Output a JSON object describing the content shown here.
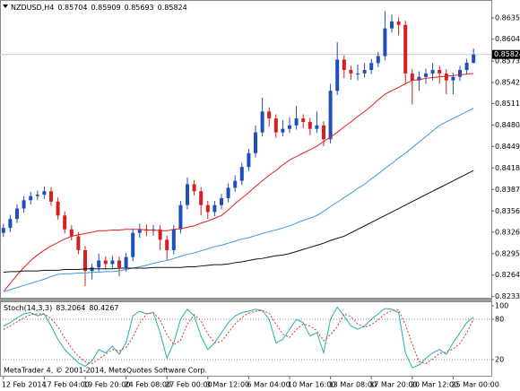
{
  "chart_data": [
    {
      "type": "candlestick",
      "title": "NZDUSD,H4",
      "categories": [
        "12 Feb 2014",
        null,
        null,
        null,
        null,
        null,
        "17 Feb 04:00",
        null,
        null,
        null,
        null,
        null,
        "19 Feb 20:00",
        null,
        null,
        null,
        null,
        null,
        "24 Feb 08:00",
        null,
        null,
        null,
        null,
        null,
        "27 Feb 00:00",
        null,
        null,
        null,
        null,
        null,
        "3 Mar 12:00",
        null,
        null,
        null,
        null,
        null,
        "6 Mar 04:00",
        null,
        null,
        null,
        null,
        null,
        "10 Mar 16:00",
        null,
        null,
        null,
        null,
        null,
        "13 Mar 08:00",
        null,
        null,
        null,
        null,
        null,
        "17 Mar 20:00",
        null,
        null,
        null,
        null,
        null,
        "20 Mar 12:00",
        null,
        null,
        null,
        null,
        null,
        "25 Mar 00:00",
        null,
        null,
        null
      ],
      "open": [
        0.8325,
        0.8332,
        0.8345,
        0.836,
        0.8372,
        0.8378,
        0.838,
        0.8385,
        0.837,
        0.835,
        0.833,
        0.832,
        0.83,
        0.827,
        0.8275,
        0.8285,
        0.828,
        0.8285,
        0.8275,
        0.829,
        0.8325,
        0.833,
        0.8328,
        0.833,
        0.8315,
        0.83,
        0.833,
        0.8365,
        0.8395,
        0.8385,
        0.8365,
        0.8355,
        0.8365,
        0.8375,
        0.839,
        0.84,
        0.842,
        0.844,
        0.847,
        0.85,
        0.849,
        0.847,
        0.8475,
        0.848,
        0.849,
        0.8485,
        0.8475,
        0.848,
        0.846,
        0.853,
        0.8575,
        0.856,
        0.8555,
        0.8555,
        0.856,
        0.857,
        0.858,
        0.862,
        0.863,
        0.8625,
        0.8555,
        0.8545,
        0.855,
        0.8555,
        0.856,
        0.8555,
        0.8545,
        0.855,
        0.856,
        0.85704
      ],
      "high": [
        0.8338,
        0.8351,
        0.8366,
        0.8378,
        0.8384,
        0.8386,
        0.8392,
        0.8391,
        0.8376,
        0.8356,
        0.8336,
        0.8326,
        0.8306,
        0.8281,
        0.8295,
        0.8291,
        0.8292,
        0.8291,
        0.8296,
        0.8331,
        0.8338,
        0.8337,
        0.8336,
        0.8336,
        0.8321,
        0.8336,
        0.8371,
        0.8405,
        0.8401,
        0.8391,
        0.8371,
        0.8371,
        0.8381,
        0.8396,
        0.8408,
        0.8426,
        0.8446,
        0.848,
        0.852,
        0.8506,
        0.8496,
        0.8488,
        0.8492,
        0.8508,
        0.8496,
        0.8491,
        0.85,
        0.8486,
        0.854,
        0.86,
        0.8581,
        0.8566,
        0.8568,
        0.857,
        0.8576,
        0.8586,
        0.8645,
        0.864,
        0.8636,
        0.8631,
        0.8561,
        0.8558,
        0.8562,
        0.857,
        0.8566,
        0.8561,
        0.8556,
        0.8566,
        0.8576,
        0.85909
      ],
      "low": [
        0.8319,
        0.8326,
        0.8339,
        0.8354,
        0.8366,
        0.8372,
        0.8374,
        0.8364,
        0.8344,
        0.8324,
        0.8314,
        0.8294,
        0.8248,
        0.8258,
        0.8269,
        0.8272,
        0.8274,
        0.8262,
        0.8269,
        0.8284,
        0.8318,
        0.832,
        0.8321,
        0.83,
        0.8286,
        0.8294,
        0.8324,
        0.8359,
        0.8379,
        0.835,
        0.8345,
        0.8349,
        0.8359,
        0.8369,
        0.8384,
        0.8394,
        0.8414,
        0.8434,
        0.8464,
        0.8478,
        0.8462,
        0.8464,
        0.8469,
        0.8474,
        0.8476,
        0.8466,
        0.8469,
        0.845,
        0.8454,
        0.8524,
        0.8548,
        0.8546,
        0.8545,
        0.8549,
        0.8554,
        0.8564,
        0.8574,
        0.8614,
        0.861,
        0.854,
        0.851,
        0.853,
        0.854,
        0.8545,
        0.854,
        0.8525,
        0.8525,
        0.8544,
        0.8554,
        0.85693
      ],
      "close": [
        0.8332,
        0.8345,
        0.836,
        0.8372,
        0.8378,
        0.838,
        0.8385,
        0.837,
        0.835,
        0.833,
        0.832,
        0.83,
        0.827,
        0.8275,
        0.8285,
        0.828,
        0.8285,
        0.8275,
        0.829,
        0.8325,
        0.833,
        0.8328,
        0.833,
        0.8315,
        0.83,
        0.833,
        0.8365,
        0.8395,
        0.8385,
        0.8365,
        0.8355,
        0.8365,
        0.8375,
        0.839,
        0.84,
        0.842,
        0.844,
        0.847,
        0.85,
        0.849,
        0.847,
        0.8475,
        0.848,
        0.849,
        0.8485,
        0.8475,
        0.848,
        0.846,
        0.853,
        0.8575,
        0.856,
        0.8555,
        0.8555,
        0.856,
        0.857,
        0.858,
        0.862,
        0.863,
        0.8625,
        0.8555,
        0.8545,
        0.855,
        0.8555,
        0.856,
        0.8555,
        0.8545,
        0.855,
        0.856,
        0.85704,
        0.85824
      ],
      "up_color": "#1f4fb8",
      "down_color": "#d42020",
      "series": [
        {
          "color": "#e02020",
          "values": [
            0.824,
            0.8252,
            0.8264,
            0.8275,
            0.8285,
            0.8293,
            0.83,
            0.8306,
            0.8311,
            0.8316,
            0.832,
            0.8322,
            0.8324,
            0.8326,
            0.8328,
            0.8328,
            0.8329,
            0.8329,
            0.833,
            0.833,
            0.833,
            0.8329,
            0.8329,
            0.8328,
            0.8328,
            0.833,
            0.8331,
            0.8333,
            0.8335,
            0.8339,
            0.8342,
            0.8346,
            0.835,
            0.8358,
            0.8367,
            0.8375,
            0.8383,
            0.8392,
            0.84,
            0.8408,
            0.8415,
            0.8423,
            0.843,
            0.8435,
            0.844,
            0.8445,
            0.845,
            0.8457,
            0.8463,
            0.847,
            0.8478,
            0.8485,
            0.8493,
            0.85,
            0.8508,
            0.8517,
            0.8525,
            0.853,
            0.8535,
            0.854,
            0.8545,
            0.8546,
            0.8548,
            0.8549,
            0.855,
            0.8551,
            0.8552,
            0.8553,
            0.8554,
            0.8555
          ]
        },
        {
          "color": "#3a9be0",
          "values": [
            0.824,
            0.8243,
            0.8246,
            0.8249,
            0.8252,
            0.8255,
            0.8258,
            0.8262,
            0.8265,
            0.8266,
            0.8266,
            0.8267,
            0.8267,
            0.8268,
            0.8268,
            0.8269,
            0.8269,
            0.827,
            0.8272,
            0.8274,
            0.8276,
            0.8278,
            0.8281,
            0.8283,
            0.8285,
            0.8288,
            0.8291,
            0.8294,
            0.8296,
            0.8299,
            0.8302,
            0.8305,
            0.8307,
            0.831,
            0.8313,
            0.8316,
            0.8318,
            0.8321,
            0.8324,
            0.8327,
            0.8329,
            0.8332,
            0.8335,
            0.8339,
            0.8343,
            0.8346,
            0.835,
            0.8356,
            0.8363,
            0.8369,
            0.8376,
            0.8382,
            0.8389,
            0.8395,
            0.8403,
            0.841,
            0.8418,
            0.8425,
            0.8433,
            0.844,
            0.8448,
            0.8456,
            0.8464,
            0.8472,
            0.848,
            0.8485,
            0.849,
            0.8495,
            0.85,
            0.8505
          ]
        },
        {
          "color": "#111111",
          "values": [
            0.8268,
            0.8269,
            0.8269,
            0.827,
            0.827,
            0.827,
            0.8271,
            0.8271,
            0.8271,
            0.8272,
            0.8272,
            0.8272,
            0.8273,
            0.8273,
            0.8273,
            0.8273,
            0.8273,
            0.8274,
            0.8274,
            0.8274,
            0.8274,
            0.8274,
            0.8275,
            0.8275,
            0.8275,
            0.8275,
            0.8275,
            0.8276,
            0.8276,
            0.8277,
            0.8278,
            0.8279,
            0.8279,
            0.828,
            0.8282,
            0.8283,
            0.8285,
            0.8287,
            0.8288,
            0.829,
            0.8292,
            0.8293,
            0.8295,
            0.8298,
            0.8301,
            0.8304,
            0.8307,
            0.831,
            0.8314,
            0.8317,
            0.832,
            0.8325,
            0.833,
            0.8335,
            0.834,
            0.8345,
            0.835,
            0.8355,
            0.836,
            0.8365,
            0.837,
            0.8375,
            0.838,
            0.8385,
            0.839,
            0.8395,
            0.84,
            0.8405,
            0.841,
            0.8415
          ]
        }
      ],
      "ylim": [
        0.823,
        0.8661
      ],
      "yticks": [
        {
          "value": 0.8635,
          "label": "0.86350"
        },
        {
          "value": 0.86045,
          "label": "0.86045"
        },
        {
          "value": 0.8573,
          "label": "0.85730"
        },
        {
          "value": 0.8542,
          "label": "0.85420"
        },
        {
          "value": 0.85115,
          "label": "0.85115"
        },
        {
          "value": 0.84805,
          "label": "0.84805"
        },
        {
          "value": 0.84495,
          "label": "0.84495"
        },
        {
          "value": 0.84185,
          "label": "0.84185"
        },
        {
          "value": 0.83875,
          "label": "0.83875"
        },
        {
          "value": 0.83565,
          "label": "0.83565"
        },
        {
          "value": 0.8326,
          "label": "0.83260"
        },
        {
          "value": 0.8295,
          "label": "0.82950"
        },
        {
          "value": 0.8264,
          "label": "0.82640"
        },
        {
          "value": 0.8233,
          "label": "0.82330"
        }
      ]
    },
    {
      "type": "line",
      "title": "Stoch(14,3,3)",
      "series": [
        {
          "color": "#20b2aa",
          "dash": "solid",
          "values": [
            70,
            75,
            82,
            88,
            90,
            85,
            88,
            70,
            50,
            35,
            25,
            15,
            10,
            18,
            35,
            30,
            40,
            28,
            45,
            85,
            92,
            88,
            90,
            60,
            22,
            45,
            80,
            95,
            85,
            55,
            35,
            45,
            60,
            75,
            85,
            90,
            92,
            95,
            93,
            80,
            45,
            50,
            65,
            80,
            75,
            55,
            60,
            30,
            80,
            98,
            85,
            70,
            65,
            70,
            80,
            88,
            96,
            95,
            90,
            30,
            8,
            12,
            22,
            30,
            35,
            28,
            45,
            60,
            75,
            83.2064
          ]
        },
        {
          "color": "#e03030",
          "dash": "dotted",
          "values": [
            65,
            70,
            76,
            82,
            87,
            88,
            88,
            81,
            69,
            52,
            37,
            25,
            17,
            14,
            21,
            28,
            35,
            33,
            38,
            53,
            74,
            88,
            90,
            79,
            57,
            42,
            49,
            73,
            87,
            78,
            58,
            45,
            47,
            60,
            73,
            83,
            89,
            92,
            93,
            89,
            73,
            58,
            53,
            65,
            73,
            70,
            63,
            48,
            57,
            69,
            88,
            84,
            73,
            68,
            72,
            79,
            88,
            93,
            94,
            72,
            43,
            17,
            14,
            21,
            29,
            31,
            36,
            44,
            60,
            80.4267
          ]
        }
      ],
      "ylim": [
        0,
        100
      ],
      "yticks": [
        20,
        80,
        100
      ],
      "levels": [
        20,
        80
      ],
      "annotation": "MetaTrader 4, © 2001-2014, MetaQuotes Software Corp."
    }
  ]
}
